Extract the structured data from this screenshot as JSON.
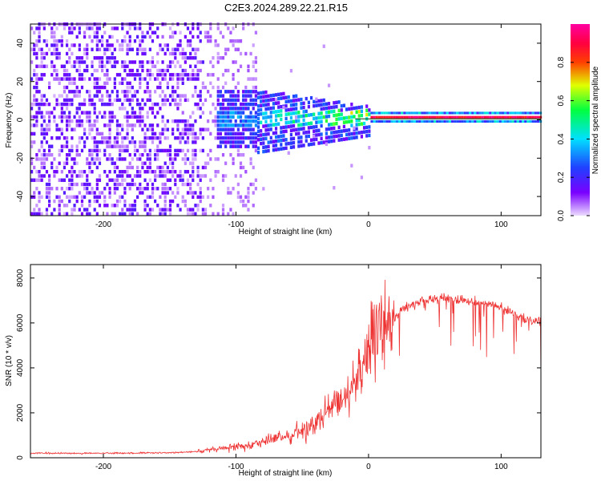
{
  "title": "C2E3.2024.289.22.21.R15",
  "chart_data": [
    {
      "type": "heatmap",
      "xlabel": "Height of straight line (km)",
      "ylabel": "Frequency (Hz)",
      "xlim": [
        -255,
        130
      ],
      "ylim": [
        -50,
        50
      ],
      "xticks": [
        -200,
        -100,
        0,
        100
      ],
      "yticks": [
        -40,
        -20,
        0,
        20,
        40
      ],
      "grid": false,
      "colorbar": {
        "label": "Normalized spectral amplitude",
        "range": [
          0,
          1
        ],
        "ticks": [
          0.0,
          0.2,
          0.4,
          0.6,
          0.8
        ],
        "colormap": "rainbow (violet → blue → cyan → green → yellow → red → magenta)"
      },
      "description_points": [
        {
          "x_range": [
            -255,
            -125
          ],
          "freq_spread": [
            -50,
            50
          ],
          "amplitude": 0.15
        },
        {
          "x_range": [
            -125,
            -85
          ],
          "freq_spread": [
            -50,
            50
          ],
          "amplitude": 0.1
        },
        {
          "x_range": [
            -115,
            -60
          ],
          "freq_spread": [
            -15,
            15
          ],
          "amplitude": 0.25
        },
        {
          "x_range": [
            -60,
            0
          ],
          "freq_spread": [
            -10,
            8
          ],
          "amplitude": 0.45
        },
        {
          "x_range": [
            0,
            130
          ],
          "freq_spread": [
            -1,
            1
          ],
          "amplitude": 0.95
        }
      ]
    },
    {
      "type": "line",
      "xlabel": "Height of straight line (km)",
      "ylabel": "SNR (10 * v/v)",
      "xlim": [
        -255,
        130
      ],
      "ylim": [
        0,
        8600
      ],
      "xticks": [
        -200,
        -100,
        0,
        100
      ],
      "yticks": [
        0,
        2000,
        4000,
        6000,
        8000
      ],
      "grid": false,
      "series": [
        {
          "color": "#ee3333",
          "x": [
            -255,
            -200,
            -150,
            -125,
            -100,
            -80,
            -60,
            -40,
            -25,
            -10,
            0,
            10,
            25,
            40,
            60,
            80,
            100,
            115,
            130
          ],
          "y": [
            200,
            200,
            220,
            300,
            500,
            700,
            1000,
            1500,
            2300,
            3400,
            4800,
            5700,
            6600,
            7000,
            7100,
            7000,
            6700,
            6200,
            6100
          ]
        }
      ]
    }
  ]
}
